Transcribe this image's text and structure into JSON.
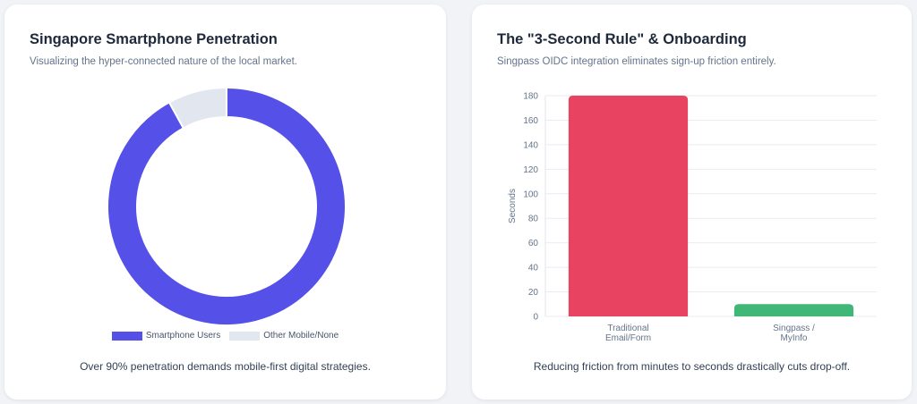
{
  "donut_card": {
    "title": "Singapore Smartphone Penetration",
    "subtitle": "Visualizing the hyper-connected nature of the local market.",
    "footer": "Over 90% penetration demands mobile-first digital strategies."
  },
  "bar_card": {
    "title": "The \"3-Second Rule\" & Onboarding",
    "subtitle": "Singpass OIDC integration eliminates sign-up friction entirely.",
    "footer": "Reducing friction from minutes to seconds drastically cuts drop-off."
  },
  "chart_data": [
    {
      "type": "pie",
      "variant": "doughnut",
      "labels": [
        "Smartphone Users",
        "Other Mobile/None"
      ],
      "values": [
        92,
        8
      ],
      "colors": [
        "#5550e8",
        "#e2e6ef"
      ],
      "legend": "bottom"
    },
    {
      "type": "bar",
      "categories": [
        [
          "Traditional",
          "Email/Form"
        ],
        [
          "Singpass /",
          "MyInfo"
        ]
      ],
      "values": [
        180,
        10
      ],
      "colors": [
        "#e84462",
        "#41b777"
      ],
      "ylabel": "Seconds",
      "ylim": [
        0,
        180
      ],
      "yticks": [
        0,
        20,
        40,
        60,
        80,
        100,
        120,
        140,
        160,
        180
      ],
      "grid": true
    }
  ]
}
